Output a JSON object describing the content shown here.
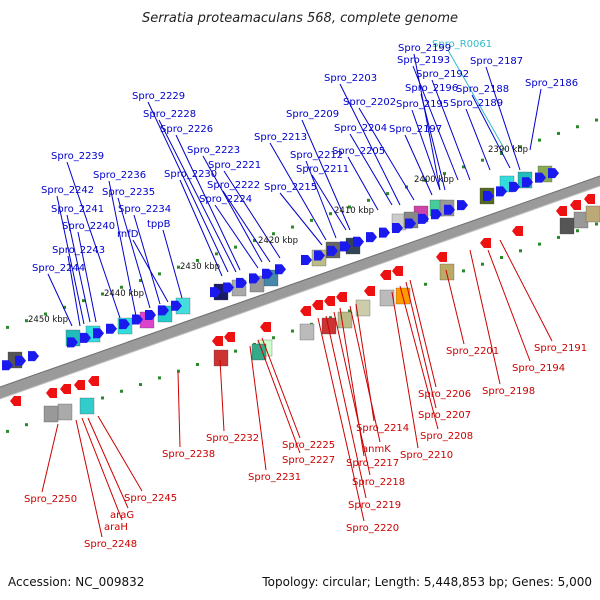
{
  "title": "Serratia proteamaculans 568, complete genome",
  "footer": {
    "accession": "Accession: NC_009832",
    "summary": "Topology: circular; Length: 5,448,853 bp; Genes: 5,000"
  },
  "colors": {
    "forward_label": "#0000cc",
    "reverse_label": "#cc0000",
    "rna_label": "#33bbcc",
    "backbone": "#9a9a9a",
    "tick": "#2a8a2a"
  },
  "ticks": [
    "2390 kbp",
    "2400 kbp",
    "2410 kbp",
    "2420 kbp",
    "2430 kbp",
    "2440 kbp",
    "2450 kbp"
  ],
  "forward_labels": [
    "Spro_2186",
    "Spro_2187",
    "Spro_R0061",
    "Spro_2188",
    "Spro_2189",
    "Spro_2192",
    "Spro_2193",
    "Spro_2195",
    "Spro_2196",
    "Spro_2197",
    "Spro_2199",
    "Spro_2202",
    "Spro_2203",
    "Spro_2204",
    "Spro_2205",
    "Spro_2209",
    "Spro_2211",
    "Spro_2212",
    "Spro_2213",
    "Spro_2215",
    "Spro_2221",
    "Spro_2222",
    "Spro_2223",
    "Spro_2224",
    "Spro_2226",
    "Spro_2228",
    "Spro_2229",
    "Spro_2230",
    "tppB",
    "rnfD",
    "Spro_2234",
    "Spro_2235",
    "Spro_2236",
    "Spro_2239",
    "Spro_2240",
    "Spro_2241",
    "Spro_2242",
    "Spro_2243",
    "Spro_2244"
  ],
  "reverse_labels": [
    "Spro_2191",
    "Spro_2194",
    "Spro_2198",
    "Spro_2201",
    "Spro_2206",
    "Spro_2207",
    "Spro_2208",
    "Spro_2210",
    "Spro_2214",
    "anmK",
    "Spro_2217",
    "Spro_2218",
    "Spro_2219",
    "Spro_2220",
    "Spro_2225",
    "Spro_2227",
    "Spro_2231",
    "Spro_2232",
    "Spro_2238",
    "Spro_2245",
    "araG",
    "araH",
    "Spro_2248",
    "Spro_2250"
  ]
}
